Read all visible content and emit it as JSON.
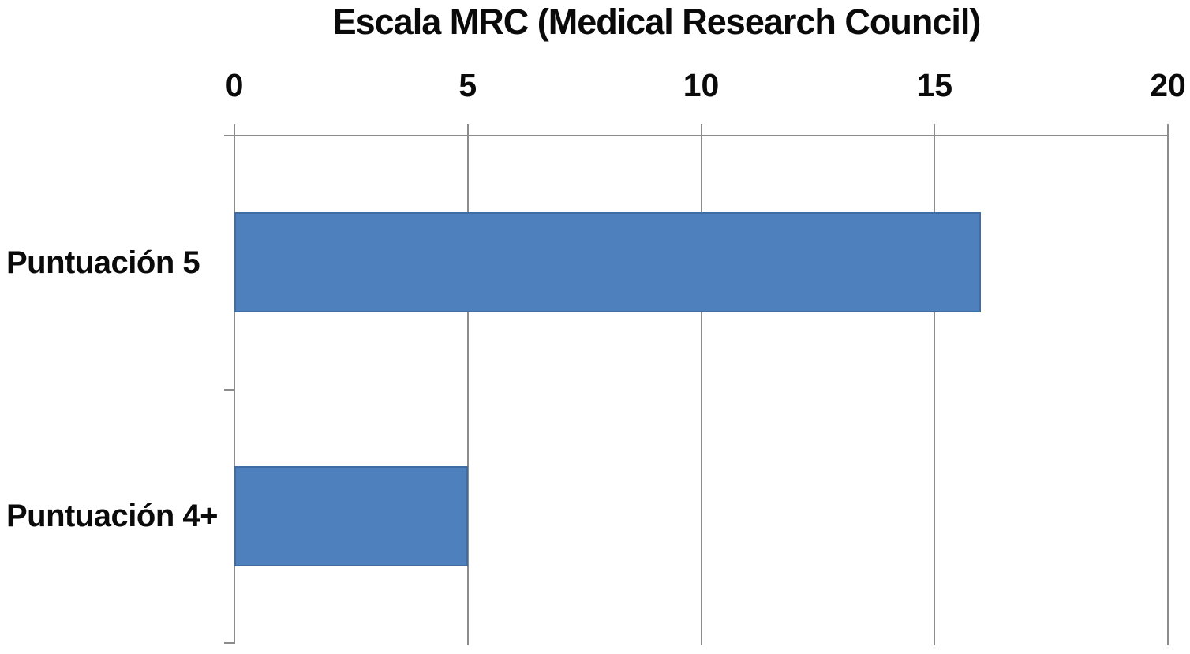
{
  "chart_data": {
    "type": "bar",
    "orientation": "horizontal",
    "title": "Escala MRC (Medical Research Council)",
    "categories": [
      "Puntuación 5",
      "Puntuación 4+"
    ],
    "values": [
      16,
      5
    ],
    "xlim": [
      0,
      20
    ],
    "x_ticks": [
      0,
      5,
      10,
      15,
      20
    ],
    "xlabel": "",
    "ylabel": "",
    "legend": "none",
    "grid": true,
    "bar_color": "#4d80bc",
    "bar_border_color": "#3e6ca3",
    "axis_line_color": "#8c8c8c",
    "text_color": "#0a0a0a",
    "background_color": "#ffffff"
  }
}
